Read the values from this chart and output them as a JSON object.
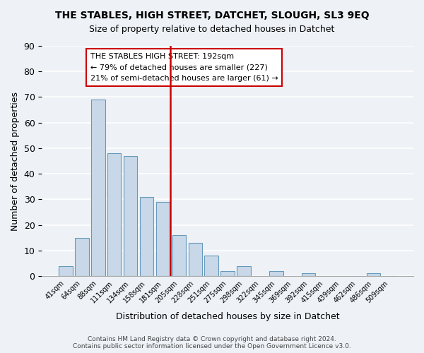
{
  "title": "THE STABLES, HIGH STREET, DATCHET, SLOUGH, SL3 9EQ",
  "subtitle": "Size of property relative to detached houses in Datchet",
  "xlabel": "Distribution of detached houses by size in Datchet",
  "ylabel": "Number of detached properties",
  "bar_color": "#c8d8e8",
  "bar_edge_color": "#6699bb",
  "bin_labels": [
    "41sqm",
    "64sqm",
    "88sqm",
    "111sqm",
    "134sqm",
    "158sqm",
    "181sqm",
    "205sqm",
    "228sqm",
    "251sqm",
    "275sqm",
    "298sqm",
    "322sqm",
    "345sqm",
    "369sqm",
    "392sqm",
    "415sqm",
    "439sqm",
    "462sqm",
    "486sqm",
    "509sqm"
  ],
  "bar_heights": [
    4,
    15,
    69,
    48,
    47,
    31,
    29,
    16,
    13,
    8,
    2,
    4,
    0,
    2,
    0,
    1,
    0,
    0,
    0,
    1,
    0
  ],
  "ylim": [
    0,
    90
  ],
  "yticks": [
    0,
    10,
    20,
    30,
    40,
    50,
    60,
    70,
    80,
    90
  ],
  "vline_color": "#cc0000",
  "annotation_title": "THE STABLES HIGH STREET: 192sqm",
  "annotation_line1": "← 79% of detached houses are smaller (227)",
  "annotation_line2": "21% of semi-detached houses are larger (61) →",
  "footer_line1": "Contains HM Land Registry data © Crown copyright and database right 2024.",
  "footer_line2": "Contains public sector information licensed under the Open Government Licence v3.0.",
  "background_color": "#eef2f7"
}
